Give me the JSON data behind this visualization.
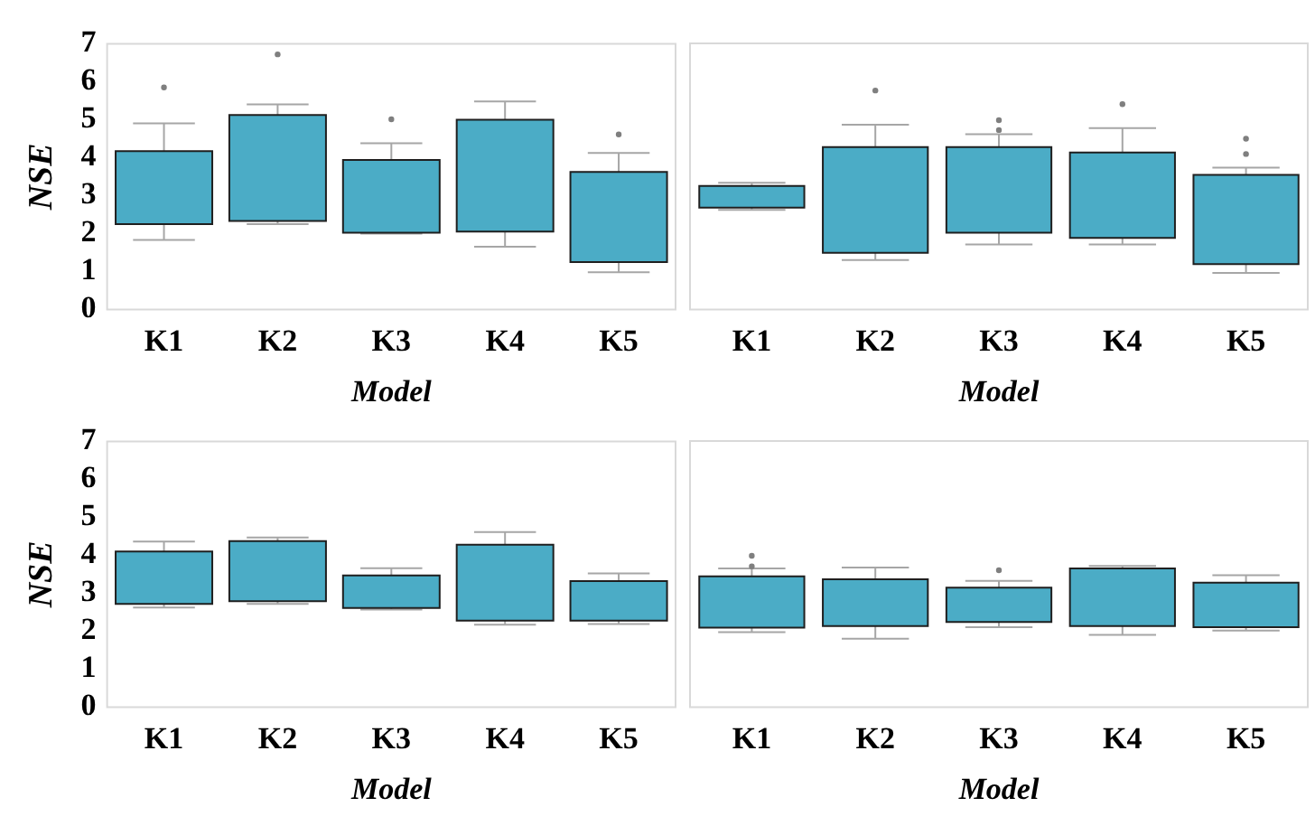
{
  "chart_data": [
    {
      "type": "box",
      "categories": [
        "K1",
        "K2",
        "K3",
        "K4",
        "K5"
      ],
      "xlabel": "Model",
      "ylabel": "NSE",
      "ylim": [
        0,
        7
      ],
      "yticks": [
        0,
        1,
        2,
        3,
        4,
        5,
        6,
        7
      ],
      "grid": false,
      "legend": false,
      "color": "#4bacc6",
      "boxes": [
        {
          "low": 1.83,
          "q1": 2.25,
          "q3": 4.17,
          "high": 4.9,
          "outliers": [
            5.85
          ]
        },
        {
          "low": 2.25,
          "q1": 2.33,
          "q3": 5.12,
          "high": 5.4,
          "outliers": [
            6.72
          ]
        },
        {
          "low": 2.0,
          "q1": 2.02,
          "q3": 3.94,
          "high": 4.38,
          "outliers": [
            5.01
          ]
        },
        {
          "low": 1.65,
          "q1": 2.05,
          "q3": 5.0,
          "high": 5.48
        },
        {
          "low": 0.98,
          "q1": 1.25,
          "q3": 3.62,
          "high": 4.12,
          "outliers": [
            4.61
          ]
        }
      ]
    },
    {
      "type": "box",
      "categories": [
        "K1",
        "K2",
        "K3",
        "K4",
        "K5"
      ],
      "xlabel": "Model",
      "ylim": [
        0,
        7
      ],
      "yticks": [
        0,
        1,
        2,
        3,
        4,
        5,
        6,
        7
      ],
      "tick_labels": "x",
      "grid": false,
      "legend": false,
      "color": "#4bacc6",
      "boxes": [
        {
          "low": 2.62,
          "q1": 2.68,
          "q3": 3.25,
          "high": 3.33
        },
        {
          "low": 1.3,
          "q1": 1.49,
          "q3": 4.27,
          "high": 4.86,
          "outliers": [
            5.76
          ]
        },
        {
          "low": 1.71,
          "q1": 2.02,
          "q3": 4.27,
          "high": 4.61,
          "outliers": [
            4.72,
            4.98
          ]
        },
        {
          "low": 1.71,
          "q1": 1.88,
          "q3": 4.13,
          "high": 4.77,
          "outliers": [
            5.4
          ]
        },
        {
          "low": 0.96,
          "q1": 1.19,
          "q3": 3.54,
          "high": 3.73,
          "outliers": [
            4.09,
            4.49
          ]
        }
      ]
    },
    {
      "type": "box",
      "categories": [
        "K1",
        "K2",
        "K3",
        "K4",
        "K5"
      ],
      "xlabel": "Model",
      "ylabel": "NSE",
      "ylim": [
        0,
        7
      ],
      "yticks": [
        0,
        1,
        2,
        3,
        4,
        5,
        6,
        7
      ],
      "grid": false,
      "legend": false,
      "color": "#4bacc6",
      "boxes": [
        {
          "low": 2.62,
          "q1": 2.72,
          "q3": 4.1,
          "high": 4.36
        },
        {
          "low": 2.72,
          "q1": 2.79,
          "q3": 4.37,
          "high": 4.47
        },
        {
          "low": 2.57,
          "q1": 2.61,
          "q3": 3.47,
          "high": 3.66
        },
        {
          "low": 2.17,
          "q1": 2.28,
          "q3": 4.28,
          "high": 4.61
        },
        {
          "low": 2.19,
          "q1": 2.28,
          "q3": 3.32,
          "high": 3.52
        }
      ]
    },
    {
      "type": "box",
      "categories": [
        "K1",
        "K2",
        "K3",
        "K4",
        "K5"
      ],
      "xlabel": "Model",
      "ylim": [
        0,
        7
      ],
      "yticks": [
        0,
        1,
        2,
        3,
        4,
        5,
        6,
        7
      ],
      "tick_labels": "x",
      "grid": false,
      "legend": false,
      "color": "#4bacc6",
      "boxes": [
        {
          "low": 1.97,
          "q1": 2.09,
          "q3": 3.44,
          "high": 3.65,
          "outliers": [
            3.7,
            3.98
          ]
        },
        {
          "low": 1.8,
          "q1": 2.13,
          "q3": 3.36,
          "high": 3.67
        },
        {
          "low": 2.1,
          "q1": 2.24,
          "q3": 3.14,
          "high": 3.32,
          "outliers": [
            3.6
          ]
        },
        {
          "low": 1.9,
          "q1": 2.13,
          "q3": 3.65,
          "high": 3.71
        },
        {
          "low": 2.01,
          "q1": 2.1,
          "q3": 3.27,
          "high": 3.47
        }
      ]
    }
  ]
}
